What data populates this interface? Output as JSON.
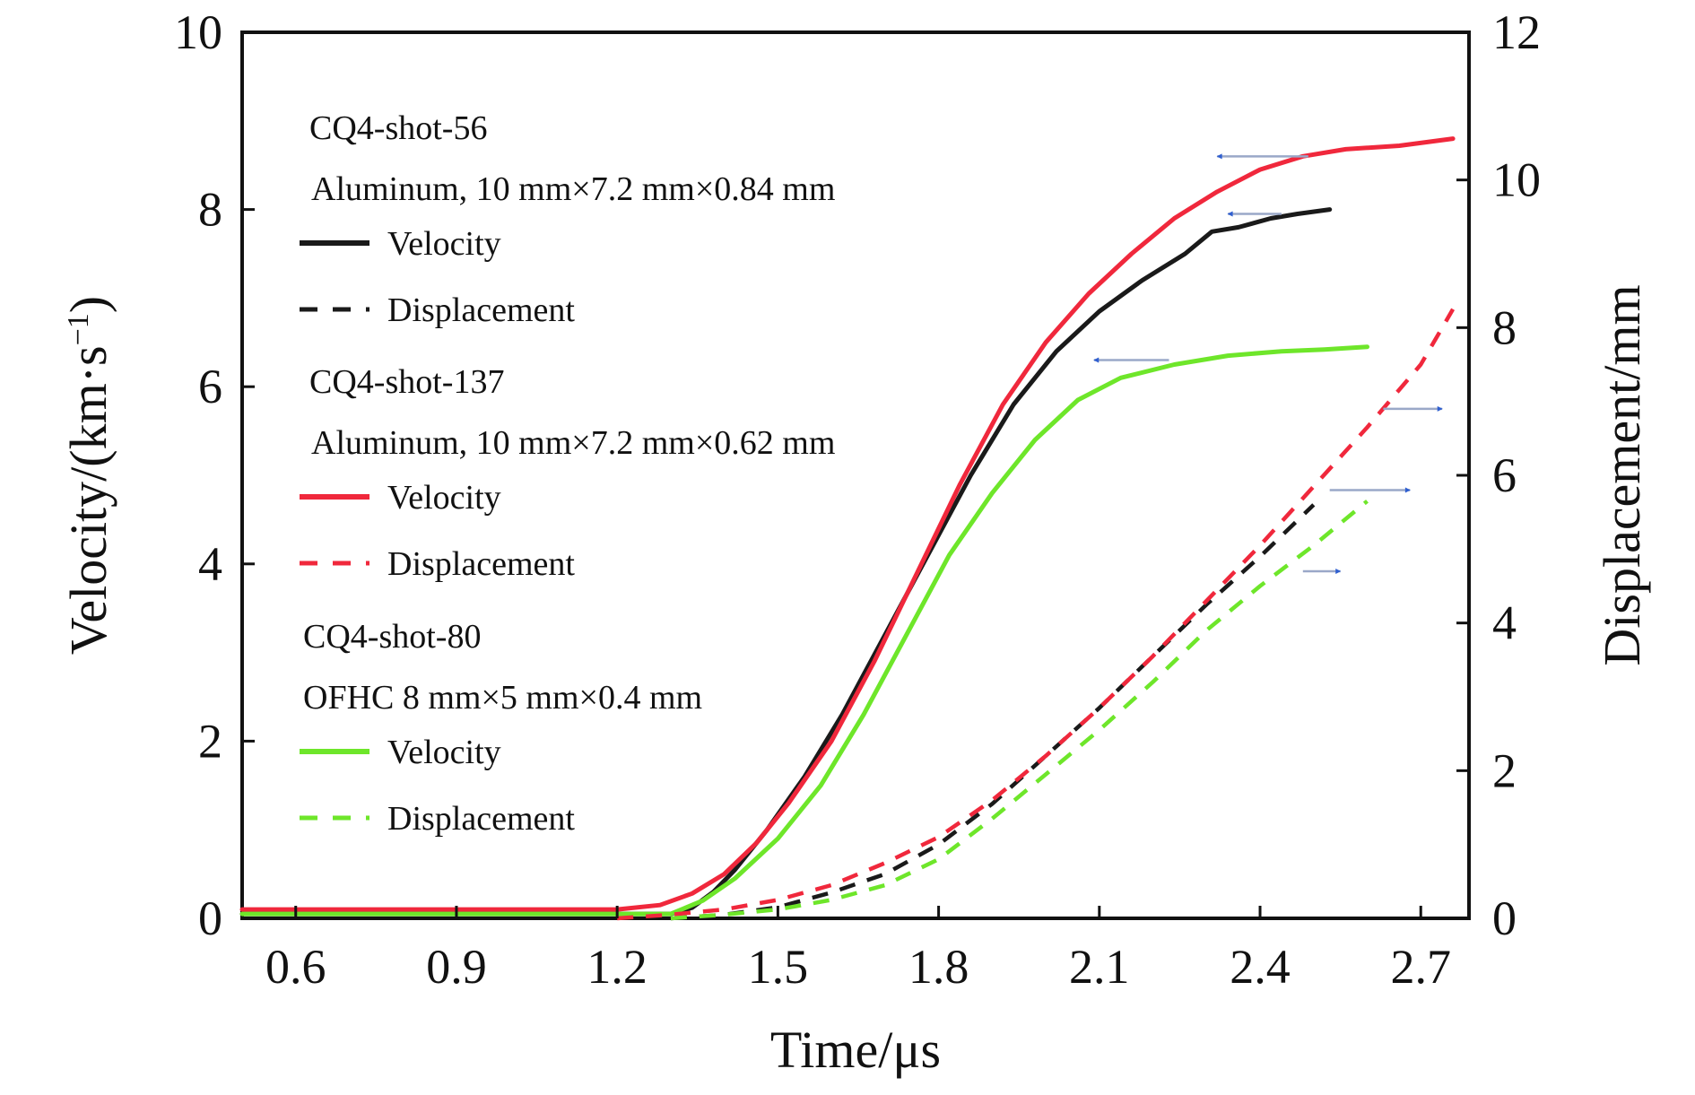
{
  "chart_data": {
    "type": "line",
    "xlabel": "Time/μs",
    "ylabel_left": "Velocity/(km·s",
    "ylabel_left_sup": "−1",
    "ylabel_left_close": ")",
    "ylabel_right": "Displacement/mm",
    "xlim": [
      0.5,
      2.79
    ],
    "ylim_left": [
      0,
      10
    ],
    "ylim_right": [
      0,
      12
    ],
    "xticks": [
      0.6,
      0.9,
      1.2,
      1.5,
      1.8,
      2.1,
      2.4,
      2.7
    ],
    "xtick_labels": [
      "0.6",
      "0.9",
      "1.2",
      "1.5",
      "1.8",
      "2.1",
      "2.4",
      "2.7"
    ],
    "yticks_left": [
      0,
      2,
      4,
      6,
      8,
      10
    ],
    "ytick_labels_left": [
      "0",
      "2",
      "4",
      "6",
      "8",
      "10"
    ],
    "yticks_right": [
      0,
      2,
      4,
      6,
      8,
      10,
      12
    ],
    "ytick_labels_right": [
      "0",
      "2",
      "4",
      "6",
      "8",
      "10",
      "12"
    ],
    "grid": false,
    "legend_position": "top-left",
    "legend_groups": [
      {
        "shot": "CQ4-shot-56",
        "material": "Aluminum, 10 mm×7.2 mm×0.84 mm",
        "color": "#1a1a1a",
        "velocity_label": "Velocity",
        "displacement_label": "Displacement"
      },
      {
        "shot": "CQ4-shot-137",
        "material": "Aluminum, 10 mm×7.2 mm×0.62 mm",
        "color": "#f0283c",
        "velocity_label": "Velocity",
        "displacement_label": "Displacement"
      },
      {
        "shot": "CQ4-shot-80",
        "material": "OFHC 8 mm×5 mm×0.4 mm",
        "color": "#6ee62a",
        "velocity_label": "Velocity",
        "displacement_label": "Displacement"
      }
    ],
    "series": [
      {
        "kind": "velocity",
        "group": 0,
        "axis": "left",
        "color": "#1a1a1a",
        "x": [
          0.5,
          1.3,
          1.34,
          1.38,
          1.42,
          1.48,
          1.55,
          1.62,
          1.7,
          1.78,
          1.86,
          1.94,
          2.02,
          2.1,
          2.18,
          2.26,
          2.31,
          2.36,
          2.42,
          2.47,
          2.53
        ],
        "y": [
          0.05,
          0.05,
          0.12,
          0.3,
          0.55,
          1.0,
          1.6,
          2.3,
          3.2,
          4.1,
          5.0,
          5.8,
          6.4,
          6.85,
          7.2,
          7.5,
          7.75,
          7.8,
          7.9,
          7.95,
          8.0
        ]
      },
      {
        "kind": "velocity",
        "group": 1,
        "axis": "left",
        "color": "#f0283c",
        "x": [
          0.5,
          1.2,
          1.28,
          1.34,
          1.4,
          1.46,
          1.52,
          1.6,
          1.68,
          1.76,
          1.84,
          1.92,
          2.0,
          2.08,
          2.16,
          2.24,
          2.32,
          2.4,
          2.48,
          2.56,
          2.66,
          2.76
        ],
        "y": [
          0.1,
          0.1,
          0.15,
          0.28,
          0.5,
          0.85,
          1.3,
          2.0,
          2.9,
          3.9,
          4.9,
          5.8,
          6.5,
          7.05,
          7.5,
          7.9,
          8.2,
          8.45,
          8.6,
          8.68,
          8.72,
          8.8
        ]
      },
      {
        "kind": "velocity",
        "group": 2,
        "axis": "left",
        "color": "#6ee62a",
        "x": [
          0.5,
          1.3,
          1.36,
          1.42,
          1.5,
          1.58,
          1.66,
          1.74,
          1.82,
          1.9,
          1.98,
          2.06,
          2.14,
          2.24,
          2.34,
          2.44,
          2.52,
          2.6
        ],
        "y": [
          0.05,
          0.05,
          0.2,
          0.45,
          0.9,
          1.5,
          2.3,
          3.2,
          4.1,
          4.8,
          5.4,
          5.85,
          6.1,
          6.25,
          6.35,
          6.4,
          6.42,
          6.45
        ]
      },
      {
        "kind": "displacement",
        "group": 0,
        "axis": "right",
        "color": "#1a1a1a",
        "x": [
          1.3,
          1.4,
          1.5,
          1.6,
          1.7,
          1.8,
          1.9,
          2.0,
          2.1,
          2.2,
          2.3,
          2.4,
          2.5
        ],
        "y": [
          0.0,
          0.05,
          0.15,
          0.35,
          0.6,
          1.0,
          1.55,
          2.2,
          2.85,
          3.55,
          4.25,
          4.9,
          5.6
        ]
      },
      {
        "kind": "displacement",
        "group": 1,
        "axis": "right",
        "color": "#f0283c",
        "x": [
          1.2,
          1.3,
          1.4,
          1.5,
          1.6,
          1.7,
          1.8,
          1.9,
          2.0,
          2.1,
          2.2,
          2.3,
          2.4,
          2.5,
          2.6,
          2.7,
          2.76
        ],
        "y": [
          0.0,
          0.05,
          0.12,
          0.25,
          0.45,
          0.75,
          1.1,
          1.6,
          2.2,
          2.85,
          3.55,
          4.3,
          5.05,
          5.85,
          6.65,
          7.5,
          8.25
        ]
      },
      {
        "kind": "displacement",
        "group": 2,
        "axis": "right",
        "color": "#6ee62a",
        "x": [
          1.3,
          1.4,
          1.5,
          1.6,
          1.7,
          1.8,
          1.9,
          2.0,
          2.1,
          2.2,
          2.3,
          2.4,
          2.5,
          2.6
        ],
        "y": [
          0.0,
          0.05,
          0.12,
          0.25,
          0.45,
          0.8,
          1.35,
          1.95,
          2.55,
          3.2,
          3.9,
          4.5,
          5.05,
          5.65
        ]
      }
    ],
    "annotations": [
      {
        "type": "arrow",
        "direction": "left",
        "x_from": 2.49,
        "x_to": 2.32,
        "y": 8.6,
        "axis": "left"
      },
      {
        "type": "arrow",
        "direction": "left",
        "x_from": 2.44,
        "x_to": 2.34,
        "y": 7.95,
        "axis": "left"
      },
      {
        "type": "arrow",
        "direction": "left",
        "x_from": 2.23,
        "x_to": 2.09,
        "y": 6.3,
        "axis": "left"
      },
      {
        "type": "arrow",
        "direction": "right",
        "x_from": 2.63,
        "x_to": 2.74,
        "y": 6.9,
        "axis": "right"
      },
      {
        "type": "arrow",
        "direction": "right",
        "x_from": 2.53,
        "x_to": 2.68,
        "y": 5.8,
        "axis": "right"
      },
      {
        "type": "arrow",
        "direction": "right",
        "x_from": 2.48,
        "x_to": 2.55,
        "y": 4.7,
        "axis": "right"
      }
    ]
  }
}
